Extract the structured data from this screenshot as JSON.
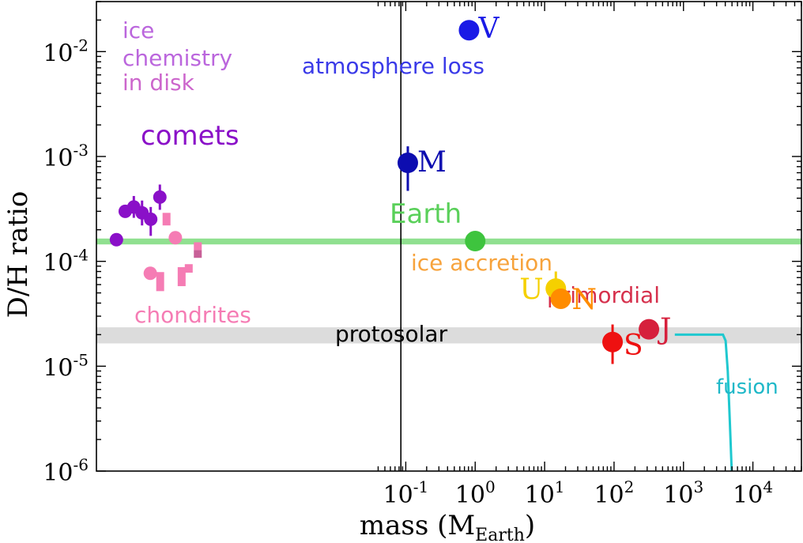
{
  "chart_data": {
    "type": "scatter",
    "title": "",
    "xlabel": "mass (M",
    "xlabel_sub": "Earth",
    "xlabel_close": ")",
    "ylabel": "D/H ratio",
    "x_scale": "log",
    "y_scale": "log",
    "xlim": [
      3.5e-06,
      50000
    ],
    "ylim": [
      1e-06,
      0.03
    ],
    "x_ticks": [
      {
        "value": 0.1,
        "base": "10",
        "exp": "-1"
      },
      {
        "value": 1,
        "base": "10",
        "exp": "0"
      },
      {
        "value": 10,
        "base": "10",
        "exp": "1"
      },
      {
        "value": 100,
        "base": "10",
        "exp": "2"
      },
      {
        "value": 1000,
        "base": "10",
        "exp": "3"
      },
      {
        "value": 10000,
        "base": "10",
        "exp": "4"
      }
    ],
    "y_ticks": [
      {
        "value": 0.01,
        "base": "10",
        "exp": "-2"
      },
      {
        "value": 0.001,
        "base": "10",
        "exp": "-3"
      },
      {
        "value": 0.0001,
        "base": "10",
        "exp": "-4"
      },
      {
        "value": 1e-05,
        "base": "10",
        "exp": "-5"
      },
      {
        "value": 1e-06,
        "base": "10",
        "exp": "-6"
      }
    ],
    "grid": false,
    "vertical_line_x": 0.085,
    "bands": [
      {
        "name": "Earth",
        "ylow": 0.000145,
        "yhigh": 0.000165,
        "color": "#90e090"
      },
      {
        "name": "protosolar",
        "ylow": 1.65e-05,
        "yhigh": 2.35e-05,
        "color": "#dcdcdc"
      }
    ],
    "planets": [
      {
        "label": "V",
        "x": 0.815,
        "y": 0.016,
        "color": "#1a1ae6",
        "label_color": "#1a1ae6",
        "err_low": null,
        "err_high": null
      },
      {
        "label": "M",
        "x": 0.107,
        "y": 0.00087,
        "color": "#0d0db0",
        "label_color": "#0d0db0",
        "err_low": 0.00047,
        "err_high": 0.00125
      },
      {
        "label": "",
        "x": 1.0,
        "y": 0.000156,
        "color": "#3ec43e",
        "label_color": "#3ec43e",
        "err_low": null,
        "err_high": null
      },
      {
        "label": "U",
        "x": 14.5,
        "y": 5.5e-05,
        "color": "#f5d000",
        "label_color": "#f5d000",
        "err_low": 4.4e-05,
        "err_high": 8e-05
      },
      {
        "label": "N",
        "x": 17.1,
        "y": 4.4e-05,
        "color": "#ff8c00",
        "label_color": "#ff8c00",
        "err_low": null,
        "err_high": null
      },
      {
        "label": "S",
        "x": 95.2,
        "y": 1.7e-05,
        "color": "#ee1111",
        "label_color": "#ee1111",
        "err_low": 1.05e-05,
        "err_high": 2.5e-05
      },
      {
        "label": "J",
        "x": 318,
        "y": 2.25e-05,
        "color": "#d6203c",
        "label_color": "#d6203c",
        "err_low": null,
        "err_high": null
      }
    ],
    "comets": {
      "color": "#8a10c8",
      "points": [
        {
          "x": 6.8e-06,
          "y": 0.000161,
          "err_low": null,
          "err_high": null
        },
        {
          "x": 9.1e-06,
          "y": 0.0003,
          "err_low": null,
          "err_high": null
        },
        {
          "x": 1.21e-05,
          "y": 0.00033,
          "err_low": 0.00026,
          "err_high": 0.00042
        },
        {
          "x": 1.59e-05,
          "y": 0.00029,
          "err_low": 0.00022,
          "err_high": 0.00038
        },
        {
          "x": 2.12e-05,
          "y": 0.000252,
          "err_low": 0.000175,
          "err_high": 0.00033
        },
        {
          "x": 2.87e-05,
          "y": 0.00041,
          "err_low": 0.00031,
          "err_high": 0.00054
        }
      ]
    },
    "chondrites": {
      "color": "#f57cb4",
      "points": [
        {
          "x": 2.09e-05,
          "y": 7.7e-05
        },
        {
          "x": 4.8e-05,
          "y": 0.000168
        }
      ],
      "bars": [
        {
          "x": 3.58e-05,
          "ylow": 0.00022,
          "yhigh": 0.00029,
          "color": "#f57cb4"
        },
        {
          "x": 2.9e-05,
          "ylow": 5.2e-05,
          "yhigh": 7.9e-05,
          "color": "#f57cb4"
        },
        {
          "x": 5.91e-05,
          "ylow": 5.8e-05,
          "yhigh": 8.8e-05,
          "color": "#f57cb4"
        },
        {
          "x": 7.48e-05,
          "ylow": 7.8e-05,
          "yhigh": 9.4e-05,
          "color": "#f57cb4"
        },
        {
          "x": 0.000101,
          "ylow": 0.000108,
          "yhigh": 0.000128,
          "color": "#c86098"
        },
        {
          "x": 0.000101,
          "ylow": 0.000128,
          "yhigh": 0.000152,
          "color": "#f57cb4"
        }
      ]
    },
    "fusion_curve": {
      "color": "#1fc8cf",
      "points": [
        [
          750,
          2e-05
        ],
        [
          3700,
          2e-05
        ],
        [
          4050,
          1.75e-05
        ],
        [
          4350,
          9e-06
        ],
        [
          4650,
          3e-06
        ],
        [
          4950,
          1e-06
        ]
      ]
    },
    "annotations": {
      "ice_chem_line1": "ice",
      "ice_chem_line2": "chemistry",
      "ice_chem_line3": "in disk",
      "comets": "comets",
      "chondrites": "chondrites",
      "atmosphere_loss": "atmosphere loss",
      "earth": "Earth",
      "ice_accretion": "ice accretion",
      "primordial": "primordial",
      "protosolar": "protosolar",
      "fusion": "fusion"
    },
    "annotation_colors": {
      "ice_chem": "#bb66dd",
      "comets": "#8a10c8",
      "chondrites": "#f57cb4",
      "atmosphere_loss": "#3a3ae8",
      "earth": "#5ad05a",
      "ice_accretion": "#f7a33c",
      "primordial": "#d6304c",
      "protosolar": "#000000",
      "fusion": "#1fb8c8"
    }
  }
}
